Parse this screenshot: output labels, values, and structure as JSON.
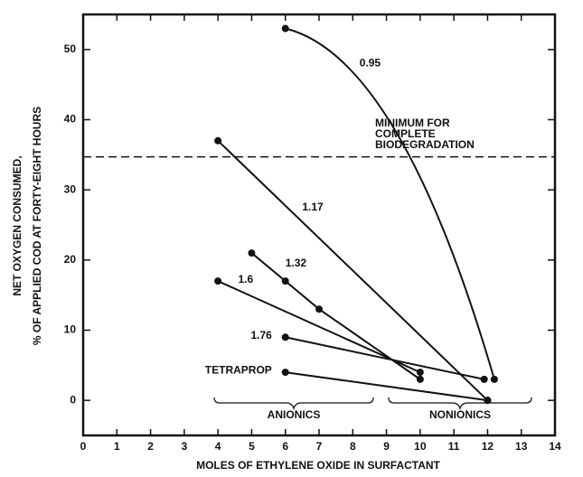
{
  "chart_data": {
    "type": "line",
    "xlabel": "MOLES OF ETHYLENE OXIDE IN SURFACTANT",
    "ylabel": [
      "NET OXYGEN CONSUMED,",
      "% OF APPLIED COD AT FORTY-EIGHT HOURS"
    ],
    "xlim": [
      0,
      14
    ],
    "xticks": [
      0,
      1,
      2,
      3,
      4,
      5,
      6,
      7,
      8,
      9,
      10,
      11,
      12,
      13,
      14
    ],
    "ylim": [
      -5,
      55
    ],
    "yticks": [
      0,
      10,
      20,
      30,
      40,
      50
    ],
    "series": [
      {
        "name": "0.95",
        "color": "#111111",
        "x": [
          6,
          12.2
        ],
        "values": [
          53,
          3
        ]
      },
      {
        "name": "1.17",
        "color": "#111111",
        "x": [
          4,
          12
        ],
        "values": [
          37,
          0
        ]
      },
      {
        "name": "1.32",
        "color": "#111111",
        "x": [
          5,
          6,
          7,
          10
        ],
        "values": [
          21,
          17,
          13,
          3
        ]
      },
      {
        "name": "1.6",
        "color": "#111111",
        "x": [
          4,
          10
        ],
        "values": [
          17,
          4
        ]
      },
      {
        "name": "1.76",
        "color": "#111111",
        "x": [
          6,
          11.9
        ],
        "values": [
          9,
          3
        ]
      },
      {
        "name": "TETRAPROP",
        "color": "#111111",
        "x": [
          6,
          12
        ],
        "values": [
          4,
          0
        ]
      }
    ],
    "threshold": {
      "value": 34.7,
      "label": [
        "MINIMUM FOR",
        "COMPLETE",
        "BIODEGRADATION"
      ]
    },
    "groups": [
      "ANIONICS",
      "NONIONICS"
    ]
  }
}
